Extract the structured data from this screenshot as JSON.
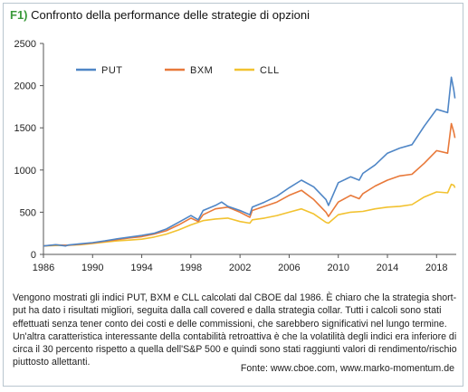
{
  "figure": {
    "label": "F1)",
    "title": "Confronto della performance delle strategie di opzioni"
  },
  "colors": {
    "put": "#4f86c6",
    "bxm": "#e8793a",
    "cll": "#f2c230",
    "axis": "#555555",
    "figure_label": "#3a9a3a"
  },
  "chart_data": {
    "type": "line",
    "title": "Confronto della performance delle strategie di opzioni",
    "xlabel": "",
    "ylabel": "",
    "xlim": [
      1986,
      2019.6
    ],
    "ylim": [
      0,
      2500
    ],
    "xticks": [
      1986,
      1990,
      1994,
      1998,
      2002,
      2006,
      2010,
      2014,
      2018
    ],
    "yticks": [
      0,
      500,
      1000,
      1500,
      2000,
      2500
    ],
    "grid": false,
    "legend": "top-left",
    "series": [
      {
        "name": "PUT",
        "color": "#4f86c6",
        "points": [
          [
            1986,
            100
          ],
          [
            1987,
            115
          ],
          [
            1987.8,
            100
          ],
          [
            1988,
            110
          ],
          [
            1989,
            125
          ],
          [
            1990,
            140
          ],
          [
            1991,
            160
          ],
          [
            1992,
            185
          ],
          [
            1993,
            205
          ],
          [
            1994,
            225
          ],
          [
            1995,
            250
          ],
          [
            1996,
            300
          ],
          [
            1997,
            380
          ],
          [
            1998,
            460
          ],
          [
            1998.6,
            410
          ],
          [
            1999,
            520
          ],
          [
            2000,
            580
          ],
          [
            2000.5,
            620
          ],
          [
            2001,
            570
          ],
          [
            2002,
            520
          ],
          [
            2002.8,
            470
          ],
          [
            2003,
            560
          ],
          [
            2004,
            620
          ],
          [
            2005,
            690
          ],
          [
            2006,
            790
          ],
          [
            2007,
            880
          ],
          [
            2008,
            800
          ],
          [
            2009,
            650
          ],
          [
            2009.2,
            580
          ],
          [
            2010,
            850
          ],
          [
            2011,
            920
          ],
          [
            2011.7,
            880
          ],
          [
            2012,
            960
          ],
          [
            2013,
            1060
          ],
          [
            2014,
            1200
          ],
          [
            2015,
            1260
          ],
          [
            2016,
            1300
          ],
          [
            2017,
            1520
          ],
          [
            2018,
            1720
          ],
          [
            2018.9,
            1680
          ],
          [
            2019.2,
            2100
          ],
          [
            2019.4,
            1950
          ],
          [
            2019.5,
            1850
          ]
        ]
      },
      {
        "name": "BXM",
        "color": "#e8793a",
        "points": [
          [
            1986,
            100
          ],
          [
            1987,
            112
          ],
          [
            1988,
            108
          ],
          [
            1989,
            120
          ],
          [
            1990,
            135
          ],
          [
            1991,
            155
          ],
          [
            1992,
            175
          ],
          [
            1993,
            195
          ],
          [
            1994,
            210
          ],
          [
            1995,
            240
          ],
          [
            1996,
            280
          ],
          [
            1997,
            350
          ],
          [
            1998,
            430
          ],
          [
            1998.6,
            390
          ],
          [
            1999,
            470
          ],
          [
            2000,
            540
          ],
          [
            2001,
            560
          ],
          [
            2002,
            500
          ],
          [
            2002.8,
            440
          ],
          [
            2003,
            520
          ],
          [
            2004,
            570
          ],
          [
            2005,
            620
          ],
          [
            2006,
            700
          ],
          [
            2007,
            760
          ],
          [
            2008,
            650
          ],
          [
            2009,
            500
          ],
          [
            2009.2,
            450
          ],
          [
            2010,
            620
          ],
          [
            2011,
            700
          ],
          [
            2011.7,
            660
          ],
          [
            2012,
            720
          ],
          [
            2013,
            810
          ],
          [
            2014,
            880
          ],
          [
            2015,
            930
          ],
          [
            2016,
            950
          ],
          [
            2017,
            1080
          ],
          [
            2018,
            1230
          ],
          [
            2018.9,
            1200
          ],
          [
            2019.2,
            1550
          ],
          [
            2019.4,
            1450
          ],
          [
            2019.5,
            1380
          ]
        ]
      },
      {
        "name": "CLL",
        "color": "#f2c230",
        "points": [
          [
            1986,
            100
          ],
          [
            1987,
            105
          ],
          [
            1988,
            108
          ],
          [
            1989,
            115
          ],
          [
            1990,
            130
          ],
          [
            1991,
            145
          ],
          [
            1992,
            160
          ],
          [
            1993,
            170
          ],
          [
            1994,
            180
          ],
          [
            1995,
            205
          ],
          [
            1996,
            240
          ],
          [
            1997,
            290
          ],
          [
            1998,
            350
          ],
          [
            1999,
            400
          ],
          [
            2000,
            420
          ],
          [
            2001,
            430
          ],
          [
            2002,
            390
          ],
          [
            2002.8,
            370
          ],
          [
            2003,
            410
          ],
          [
            2004,
            430
          ],
          [
            2005,
            460
          ],
          [
            2006,
            500
          ],
          [
            2007,
            540
          ],
          [
            2008,
            480
          ],
          [
            2009,
            380
          ],
          [
            2009.2,
            370
          ],
          [
            2010,
            470
          ],
          [
            2011,
            500
          ],
          [
            2012,
            510
          ],
          [
            2013,
            540
          ],
          [
            2014,
            560
          ],
          [
            2015,
            570
          ],
          [
            2016,
            590
          ],
          [
            2017,
            680
          ],
          [
            2018,
            740
          ],
          [
            2018.9,
            730
          ],
          [
            2019.2,
            830
          ],
          [
            2019.4,
            820
          ],
          [
            2019.5,
            790
          ]
        ]
      }
    ]
  },
  "body_text": "Vengono mostrati gli indici PUT, BXM e CLL calcolati dal CBOE dal 1986. È chiaro che la strategia short-put ha dato i risultati migliori, seguita dalla call covered e dalla strategia collar. Tutti i calcoli sono stati effettuati senza tener conto dei costi e delle commissioni, che sarebbero significativi nel lungo termine. Un'altra caratteristica interessante della contabilità retroattiva è che la volatilità degli indici era inferiore di circa il 30 percento rispetto a quella dell'S&P 500 e quindi sono stati raggiunti valori di rendimento/rischio piuttosto allettanti.",
  "source": "Fonte: www.cboe.com, www.marko-momentum.de"
}
